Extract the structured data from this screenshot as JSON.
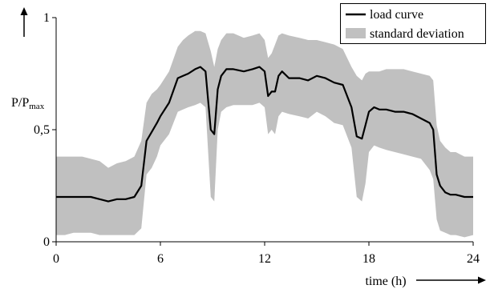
{
  "chart_data": {
    "type": "area",
    "title": "",
    "xlabel": "time (h)",
    "ylabel_main": "P/P",
    "ylabel_sub": "max",
    "xlim": [
      0,
      24
    ],
    "ylim": [
      0,
      1
    ],
    "xticks": [
      0,
      6,
      12,
      18,
      24
    ],
    "yticks": [
      0,
      0.5,
      1
    ],
    "xtick_labels": [
      "0",
      "6",
      "12",
      "18",
      "24"
    ],
    "ytick_labels": [
      "0",
      "0,5",
      "1"
    ],
    "grid": false,
    "legend_position": "top-right",
    "legend": [
      {
        "label": "load curve",
        "kind": "line"
      },
      {
        "label": "standard deviation",
        "kind": "band"
      }
    ],
    "colors": {
      "line": "#000000",
      "band": "#c0c0c0",
      "axis": "#000000"
    },
    "series": [
      {
        "name": "load curve",
        "x": [
          0,
          0.5,
          1,
          1.5,
          2,
          2.5,
          3,
          3.5,
          4,
          4.5,
          4.9,
          5.2,
          5.5,
          5.8,
          6,
          6.5,
          7,
          7.3,
          7.6,
          8,
          8.3,
          8.6,
          8.9,
          9.1,
          9.3,
          9.5,
          9.8,
          10.2,
          10.8,
          11.3,
          11.7,
          12,
          12.2,
          12.4,
          12.6,
          12.8,
          13,
          13.4,
          14,
          14.5,
          15,
          15.5,
          16,
          16.5,
          17,
          17.3,
          17.6,
          17.8,
          18,
          18.3,
          18.6,
          19,
          19.5,
          20,
          20.5,
          21,
          21.5,
          21.7,
          21.9,
          22.1,
          22.4,
          22.7,
          23,
          23.5,
          24
        ],
        "y": [
          0.2,
          0.2,
          0.2,
          0.2,
          0.2,
          0.19,
          0.18,
          0.19,
          0.19,
          0.2,
          0.25,
          0.45,
          0.49,
          0.53,
          0.56,
          0.62,
          0.73,
          0.74,
          0.75,
          0.77,
          0.78,
          0.76,
          0.5,
          0.48,
          0.68,
          0.74,
          0.77,
          0.77,
          0.76,
          0.77,
          0.78,
          0.76,
          0.65,
          0.67,
          0.67,
          0.74,
          0.76,
          0.73,
          0.73,
          0.72,
          0.74,
          0.73,
          0.71,
          0.7,
          0.6,
          0.47,
          0.46,
          0.52,
          0.58,
          0.6,
          0.59,
          0.59,
          0.58,
          0.58,
          0.57,
          0.55,
          0.53,
          0.5,
          0.3,
          0.25,
          0.22,
          0.21,
          0.21,
          0.2,
          0.2
        ]
      },
      {
        "name": "standard deviation",
        "x": [
          0,
          0.5,
          1,
          1.5,
          2,
          2.5,
          3,
          3.5,
          4,
          4.5,
          4.9,
          5.2,
          5.5,
          5.8,
          6,
          6.5,
          7,
          7.3,
          7.6,
          8,
          8.3,
          8.6,
          8.9,
          9.1,
          9.3,
          9.5,
          9.8,
          10.2,
          10.8,
          11.3,
          11.7,
          12,
          12.2,
          12.4,
          12.6,
          12.8,
          13,
          13.4,
          14,
          14.5,
          15,
          15.5,
          16,
          16.5,
          17,
          17.3,
          17.6,
          17.8,
          18,
          18.3,
          18.6,
          19,
          19.5,
          20,
          20.5,
          21,
          21.5,
          21.7,
          21.9,
          22.1,
          22.4,
          22.7,
          23,
          23.5,
          24
        ],
        "upper": [
          0.38,
          0.38,
          0.38,
          0.38,
          0.37,
          0.36,
          0.33,
          0.35,
          0.36,
          0.38,
          0.45,
          0.62,
          0.66,
          0.68,
          0.7,
          0.76,
          0.87,
          0.9,
          0.92,
          0.94,
          0.94,
          0.93,
          0.85,
          0.78,
          0.86,
          0.9,
          0.93,
          0.93,
          0.91,
          0.92,
          0.93,
          0.9,
          0.82,
          0.84,
          0.88,
          0.92,
          0.93,
          0.92,
          0.91,
          0.9,
          0.9,
          0.89,
          0.88,
          0.86,
          0.78,
          0.74,
          0.72,
          0.75,
          0.76,
          0.76,
          0.76,
          0.77,
          0.77,
          0.77,
          0.76,
          0.75,
          0.74,
          0.72,
          0.52,
          0.45,
          0.42,
          0.4,
          0.4,
          0.38,
          0.38
        ],
        "lower": [
          0.03,
          0.03,
          0.04,
          0.04,
          0.04,
          0.03,
          0.03,
          0.03,
          0.03,
          0.03,
          0.06,
          0.3,
          0.33,
          0.38,
          0.43,
          0.48,
          0.58,
          0.59,
          0.6,
          0.61,
          0.62,
          0.6,
          0.2,
          0.18,
          0.5,
          0.58,
          0.6,
          0.61,
          0.61,
          0.61,
          0.62,
          0.6,
          0.48,
          0.5,
          0.48,
          0.56,
          0.58,
          0.57,
          0.56,
          0.55,
          0.58,
          0.56,
          0.53,
          0.52,
          0.42,
          0.2,
          0.18,
          0.26,
          0.4,
          0.43,
          0.42,
          0.41,
          0.4,
          0.39,
          0.38,
          0.37,
          0.32,
          0.28,
          0.1,
          0.05,
          0.04,
          0.03,
          0.03,
          0.02,
          0.03
        ]
      }
    ]
  }
}
